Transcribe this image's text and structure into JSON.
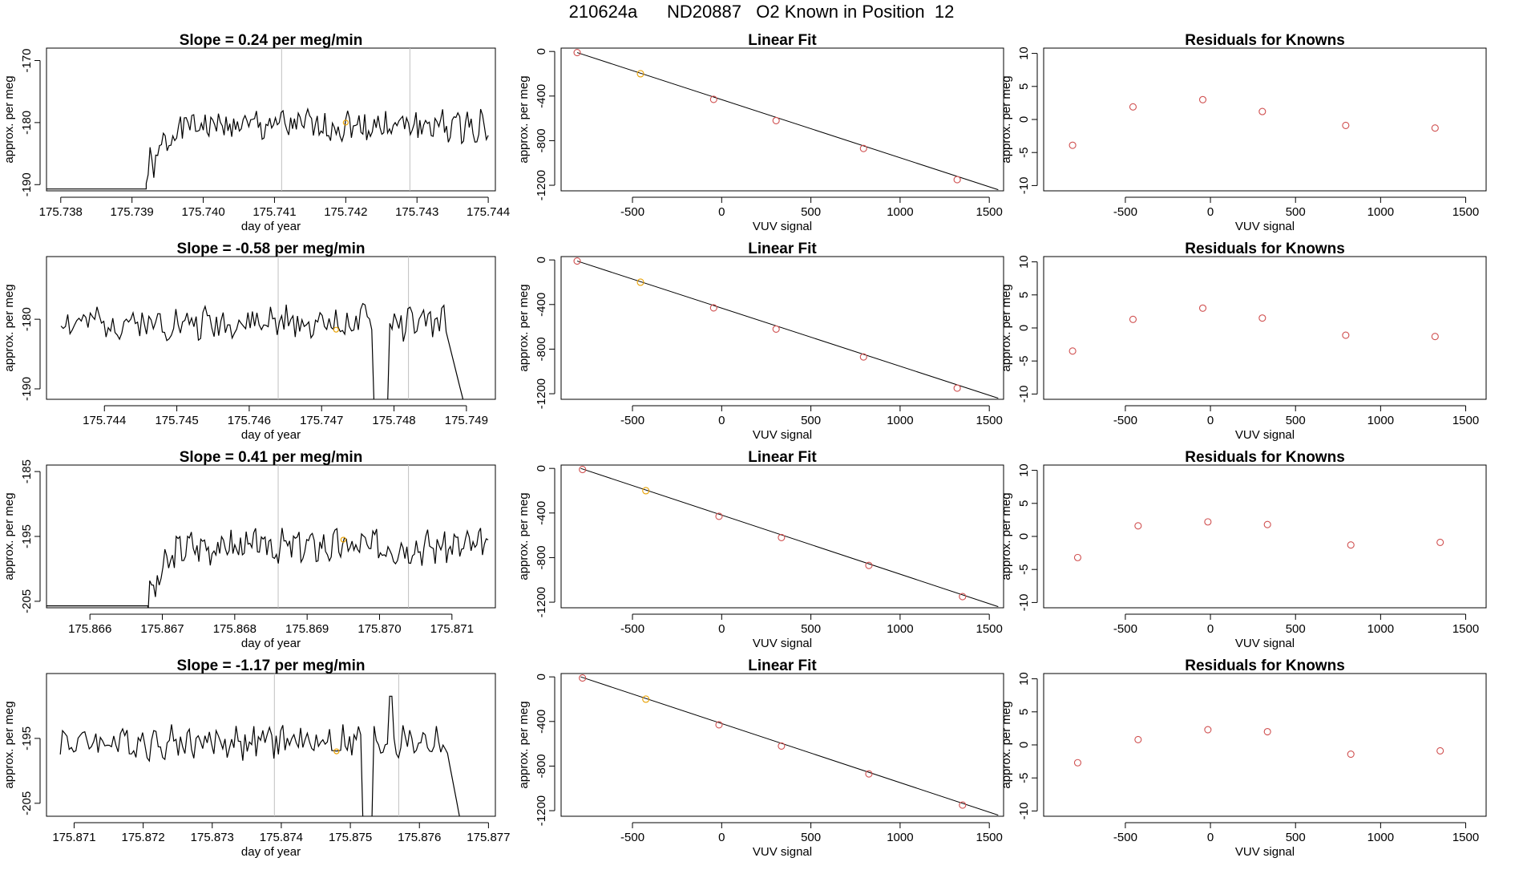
{
  "figure": {
    "run_id": "210624a",
    "tank_id": "ND20887",
    "subtitle": "O2 Known in Position",
    "position": "12"
  },
  "colors": {
    "line": "#000000",
    "vline": "#c0c0c0",
    "residual_points": "#d05050",
    "fit_points": "#d05050",
    "highlight": "#e8a000"
  },
  "chart_data": [
    {
      "type": "line",
      "row": 0,
      "col": 0,
      "title_prefix": "Slope = ",
      "slope": "0.24",
      "title_suffix": " per meg/min",
      "xlabel": "day of year",
      "ylabel": "approx. per meg",
      "xlim": [
        175.7378,
        175.7441
      ],
      "ylim": [
        -191,
        -168
      ],
      "xticks": [
        "175.738",
        "175.739",
        "175.740",
        "175.741",
        "175.742",
        "175.743",
        "175.744"
      ],
      "yticks": [
        "-170",
        "-180",
        "-190"
      ],
      "vlines": [
        175.7411,
        175.7429
      ],
      "highlight": [
        175.742,
        -180
      ],
      "seed": 1,
      "start": 175.7392,
      "end": 175.744,
      "startval": -190,
      "level": -180.5,
      "amp": 2.2,
      "rise": true,
      "x": [],
      "y": []
    },
    {
      "type": "line",
      "row": 1,
      "col": 0,
      "title_prefix": "Slope = ",
      "slope": "-0.58",
      "title_suffix": " per meg/min",
      "xlabel": "day of year",
      "ylabel": "approx. per meg",
      "xlim": [
        175.7432,
        175.7494
      ],
      "ylim": [
        -191.5,
        -171
      ],
      "xticks": [
        "175.744",
        "175.745",
        "175.746",
        "175.747",
        "175.748",
        "175.749"
      ],
      "yticks": [
        "-180",
        "-190"
      ],
      "vlines": [
        175.7464,
        175.7482
      ],
      "highlight": [
        175.7472,
        -181.5
      ],
      "seed": 2,
      "start": 175.7434,
      "end": 175.749,
      "startval": -181,
      "level": -180.5,
      "amp": 2.0,
      "rise": false,
      "x": [],
      "y": []
    },
    {
      "type": "line",
      "row": 2,
      "col": 0,
      "title_prefix": "Slope = ",
      "slope": "0.41",
      "title_suffix": " per meg/min",
      "xlabel": "day of year",
      "ylabel": "approx. per meg",
      "xlim": [
        175.8654,
        175.8716
      ],
      "ylim": [
        -206,
        -184
      ],
      "xticks": [
        "175.866",
        "175.867",
        "175.868",
        "175.869",
        "175.870",
        "175.871"
      ],
      "yticks": [
        "-185",
        "-195",
        "-205"
      ],
      "vlines": [
        175.8686,
        175.8704
      ],
      "highlight": [
        175.8695,
        -195.5
      ],
      "seed": 3,
      "start": 175.8668,
      "end": 175.8715,
      "startval": -206,
      "level": -196.5,
      "amp": 2.2,
      "rise": true,
      "x": [],
      "y": []
    },
    {
      "type": "line",
      "row": 3,
      "col": 0,
      "title_prefix": "Slope = ",
      "slope": "-1.17",
      "title_suffix": " per meg/min",
      "xlabel": "day of year",
      "ylabel": "approx. per meg",
      "xlim": [
        175.8706,
        175.8771
      ],
      "ylim": [
        -207,
        -185
      ],
      "xticks": [
        "175.871",
        "175.872",
        "175.873",
        "175.874",
        "175.875",
        "175.876",
        "175.877"
      ],
      "yticks": [
        "-195",
        "-205"
      ],
      "vlines": [
        175.8739,
        175.8757
      ],
      "highlight": [
        175.8748,
        -197
      ],
      "seed": 4,
      "start": 175.8708,
      "end": 175.8766,
      "startval": -197,
      "level": -195.5,
      "amp": 2.2,
      "rise": false,
      "x": [],
      "y": []
    },
    {
      "type": "scatter",
      "row": 0,
      "col": 1,
      "title": "Linear Fit",
      "xlabel": "VUV signal",
      "ylabel": "approx. per meg",
      "xlim": [
        -900,
        1580
      ],
      "ylim": [
        -1250,
        30
      ],
      "xticks": [
        -500,
        0,
        500,
        1000,
        1500
      ],
      "yticks": [
        0,
        -400,
        -800,
        -1200
      ],
      "x": [
        -810,
        -455,
        -45,
        305,
        795,
        1320
      ],
      "y": [
        -10,
        -200,
        -430,
        -620,
        -870,
        -1150
      ],
      "highlight_index": 1,
      "fit_line": [
        [
          -810,
          -10
        ],
        [
          1550,
          -1240
        ]
      ]
    },
    {
      "type": "scatter",
      "row": 1,
      "col": 1,
      "title": "Linear Fit",
      "xlabel": "VUV signal",
      "ylabel": "approx. per meg",
      "xlim": [
        -900,
        1580
      ],
      "ylim": [
        -1250,
        30
      ],
      "xticks": [
        -500,
        0,
        500,
        1000,
        1500
      ],
      "yticks": [
        0,
        -400,
        -800,
        -1200
      ],
      "x": [
        -810,
        -455,
        -45,
        305,
        795,
        1320
      ],
      "y": [
        -10,
        -200,
        -430,
        -620,
        -870,
        -1150
      ],
      "highlight_index": 1,
      "fit_line": [
        [
          -810,
          -10
        ],
        [
          1550,
          -1240
        ]
      ]
    },
    {
      "type": "scatter",
      "row": 2,
      "col": 1,
      "title": "Linear Fit",
      "xlabel": "VUV signal",
      "ylabel": "approx. per meg",
      "xlim": [
        -900,
        1580
      ],
      "ylim": [
        -1250,
        30
      ],
      "xticks": [
        -500,
        0,
        500,
        1000,
        1500
      ],
      "yticks": [
        0,
        -400,
        -800,
        -1200
      ],
      "x": [
        -780,
        -425,
        -15,
        335,
        825,
        1350
      ],
      "y": [
        -10,
        -200,
        -430,
        -620,
        -870,
        -1150
      ],
      "highlight_index": 1,
      "fit_line": [
        [
          -790,
          0
        ],
        [
          1550,
          -1240
        ]
      ]
    },
    {
      "type": "scatter",
      "row": 3,
      "col": 1,
      "title": "Linear Fit",
      "xlabel": "VUV signal",
      "ylabel": "approx. per meg",
      "xlim": [
        -900,
        1580
      ],
      "ylim": [
        -1250,
        30
      ],
      "xticks": [
        -500,
        0,
        500,
        1000,
        1500
      ],
      "yticks": [
        0,
        -400,
        -800,
        -1200
      ],
      "x": [
        -780,
        -425,
        -15,
        335,
        825,
        1350
      ],
      "y": [
        -10,
        -200,
        -430,
        -620,
        -870,
        -1150
      ],
      "highlight_index": 1,
      "fit_line": [
        [
          -790,
          0
        ],
        [
          1550,
          -1240
        ]
      ]
    },
    {
      "type": "scatter",
      "row": 0,
      "col": 2,
      "title": "Residuals for Knowns",
      "xlabel": "VUV signal",
      "ylabel": "approx. per meg",
      "xlim": [
        -980,
        1620
      ],
      "ylim": [
        -10.8,
        10.8
      ],
      "xticks": [
        -500,
        0,
        500,
        1000,
        1500
      ],
      "yticks": [
        10,
        5,
        0,
        -5,
        -10
      ],
      "x": [
        -810,
        -455,
        -45,
        305,
        795,
        1320
      ],
      "y": [
        -3.9,
        1.9,
        3.0,
        1.2,
        -0.9,
        -1.3
      ]
    },
    {
      "type": "scatter",
      "row": 1,
      "col": 2,
      "title": "Residuals for Knowns",
      "xlabel": "VUV signal",
      "ylabel": "approx. per meg",
      "xlim": [
        -980,
        1620
      ],
      "ylim": [
        -10.8,
        10.8
      ],
      "xticks": [
        -500,
        0,
        500,
        1000,
        1500
      ],
      "yticks": [
        10,
        5,
        0,
        -5,
        -10
      ],
      "x": [
        -810,
        -455,
        -45,
        305,
        795,
        1320
      ],
      "y": [
        -3.5,
        1.3,
        3.0,
        1.5,
        -1.1,
        -1.3
      ]
    },
    {
      "type": "scatter",
      "row": 2,
      "col": 2,
      "title": "Residuals for Knowns",
      "xlabel": "VUV signal",
      "ylabel": "approx. per meg",
      "xlim": [
        -980,
        1620
      ],
      "ylim": [
        -10.8,
        10.8
      ],
      "xticks": [
        -500,
        0,
        500,
        1000,
        1500
      ],
      "yticks": [
        10,
        5,
        0,
        -5,
        -10
      ],
      "x": [
        -780,
        -425,
        -15,
        335,
        825,
        1350
      ],
      "y": [
        -3.2,
        1.6,
        2.2,
        1.8,
        -1.3,
        -0.9
      ]
    },
    {
      "type": "scatter",
      "row": 3,
      "col": 2,
      "title": "Residuals for Knowns",
      "xlabel": "VUV signal",
      "ylabel": "approx. per meg",
      "xlim": [
        -980,
        1620
      ],
      "ylim": [
        -10.8,
        10.8
      ],
      "xticks": [
        -500,
        0,
        500,
        1000,
        1500
      ],
      "yticks": [
        10,
        5,
        0,
        -5,
        -10
      ],
      "x": [
        -780,
        -425,
        -15,
        335,
        825,
        1350
      ],
      "y": [
        -2.7,
        0.8,
        2.3,
        2.0,
        -1.4,
        -0.9
      ]
    }
  ]
}
